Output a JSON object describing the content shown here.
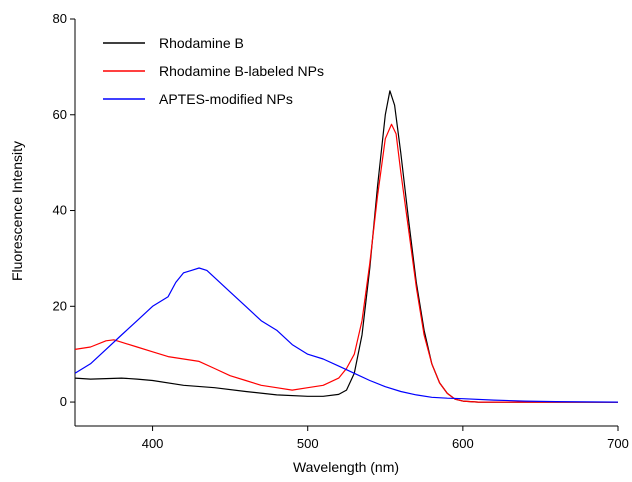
{
  "chart_data": {
    "type": "line",
    "title": "",
    "xlabel": "Wavelength (nm)",
    "ylabel": "Fluorescence Intensity",
    "xlim": [
      350,
      700
    ],
    "ylim": [
      -5,
      80
    ],
    "xticks": [
      400,
      500,
      600,
      700
    ],
    "yticks": [
      0,
      20,
      40,
      60,
      80
    ],
    "grid": false,
    "legend_position": "top-left",
    "series": [
      {
        "name": "Rhodamine B",
        "color": "#000000",
        "points": [
          [
            350,
            5
          ],
          [
            360,
            4.8
          ],
          [
            370,
            4.9
          ],
          [
            380,
            5
          ],
          [
            390,
            4.8
          ],
          [
            400,
            4.5
          ],
          [
            420,
            3.5
          ],
          [
            440,
            3
          ],
          [
            460,
            2.2
          ],
          [
            480,
            1.5
          ],
          [
            500,
            1.2
          ],
          [
            510,
            1.2
          ],
          [
            520,
            1.6
          ],
          [
            525,
            2.5
          ],
          [
            530,
            6
          ],
          [
            535,
            14
          ],
          [
            540,
            28
          ],
          [
            545,
            45
          ],
          [
            550,
            60
          ],
          [
            553,
            65
          ],
          [
            556,
            62
          ],
          [
            560,
            52
          ],
          [
            565,
            38
          ],
          [
            570,
            25
          ],
          [
            575,
            15
          ],
          [
            580,
            8
          ],
          [
            585,
            4
          ],
          [
            590,
            1.8
          ],
          [
            595,
            0.6
          ],
          [
            600,
            0.2
          ],
          [
            610,
            0
          ],
          [
            700,
            0
          ]
        ]
      },
      {
        "name": "Rhodamine B-labeled NPs",
        "color": "#ff0000",
        "points": [
          [
            350,
            11
          ],
          [
            360,
            11.5
          ],
          [
            370,
            12.8
          ],
          [
            375,
            13
          ],
          [
            380,
            12.5
          ],
          [
            390,
            11.5
          ],
          [
            400,
            10.5
          ],
          [
            410,
            9.5
          ],
          [
            420,
            9
          ],
          [
            430,
            8.5
          ],
          [
            440,
            7
          ],
          [
            450,
            5.5
          ],
          [
            460,
            4.5
          ],
          [
            470,
            3.5
          ],
          [
            480,
            3
          ],
          [
            490,
            2.5
          ],
          [
            500,
            3
          ],
          [
            510,
            3.5
          ],
          [
            520,
            5
          ],
          [
            525,
            7
          ],
          [
            530,
            10
          ],
          [
            535,
            17
          ],
          [
            540,
            29
          ],
          [
            545,
            43
          ],
          [
            550,
            55
          ],
          [
            554,
            58
          ],
          [
            557,
            56
          ],
          [
            560,
            48
          ],
          [
            565,
            36
          ],
          [
            570,
            24
          ],
          [
            575,
            14
          ],
          [
            580,
            8
          ],
          [
            585,
            4
          ],
          [
            590,
            1.8
          ],
          [
            595,
            0.6
          ],
          [
            600,
            0.2
          ],
          [
            610,
            0
          ],
          [
            700,
            0
          ]
        ]
      },
      {
        "name": "APTES-modified NPs",
        "color": "#0000ff",
        "points": [
          [
            350,
            6
          ],
          [
            360,
            8
          ],
          [
            370,
            11
          ],
          [
            380,
            14
          ],
          [
            390,
            17
          ],
          [
            400,
            20
          ],
          [
            410,
            22
          ],
          [
            415,
            25
          ],
          [
            420,
            27
          ],
          [
            425,
            27.5
          ],
          [
            430,
            28
          ],
          [
            435,
            27.5
          ],
          [
            440,
            26
          ],
          [
            450,
            23
          ],
          [
            460,
            20
          ],
          [
            470,
            17
          ],
          [
            480,
            15
          ],
          [
            490,
            12
          ],
          [
            500,
            10
          ],
          [
            510,
            9
          ],
          [
            520,
            7.5
          ],
          [
            530,
            6
          ],
          [
            540,
            4.5
          ],
          [
            550,
            3.2
          ],
          [
            560,
            2.2
          ],
          [
            570,
            1.5
          ],
          [
            580,
            1
          ],
          [
            590,
            0.8
          ],
          [
            600,
            0.7
          ],
          [
            620,
            0.4
          ],
          [
            640,
            0.2
          ],
          [
            660,
            0.1
          ],
          [
            700,
            0
          ]
        ]
      }
    ]
  }
}
